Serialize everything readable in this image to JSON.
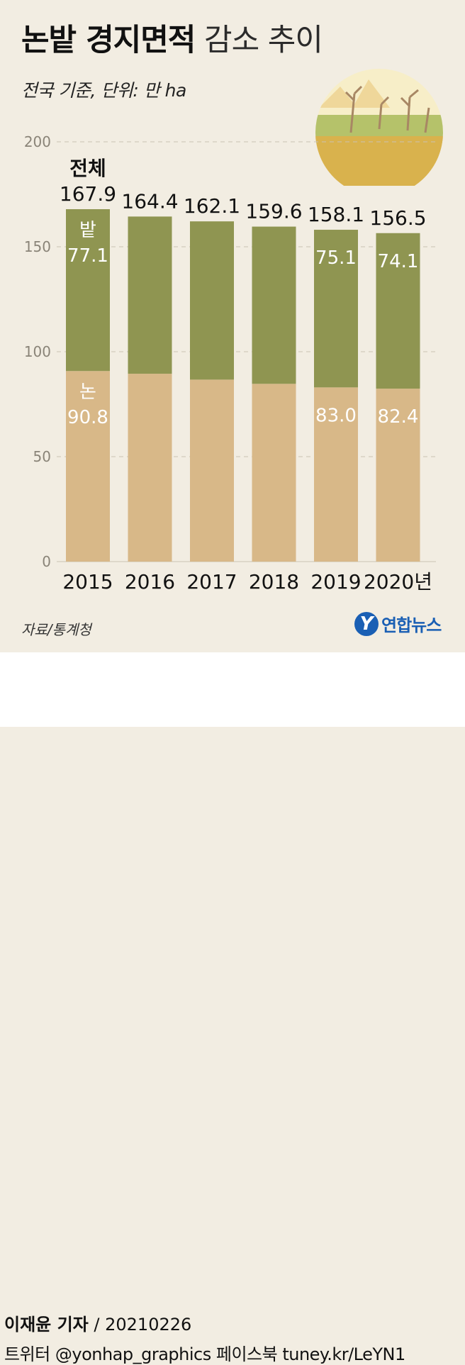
{
  "header": {
    "title_bold": "논밭 경지면적",
    "title_light": "감소 추이",
    "subtitle": "전국 기준, 단위: 만 ha"
  },
  "chart_data": {
    "type": "bar",
    "stacked": true,
    "categories": [
      "2015",
      "2016",
      "2017",
      "2018",
      "2019",
      "2020년"
    ],
    "series": [
      {
        "name": "논",
        "values": [
          90.8,
          89.5,
          86.7,
          84.7,
          83.0,
          82.4
        ],
        "color": "#d8b888"
      },
      {
        "name": "밭",
        "values": [
          77.1,
          74.9,
          75.4,
          74.9,
          75.1,
          74.1
        ],
        "color": "#8f9551"
      }
    ],
    "totals": [
      167.9,
      164.4,
      162.1,
      159.6,
      158.1,
      156.5
    ],
    "total_label": "전체",
    "total_labels": [
      "167.9",
      "164.4",
      "162.1",
      "159.6",
      "158.1",
      "156.5"
    ],
    "segment_labels": [
      {
        "bar": 0,
        "series": "밭",
        "name": "밭",
        "value": "77.1"
      },
      {
        "bar": 4,
        "series": "밭",
        "value": "75.1"
      },
      {
        "bar": 5,
        "series": "밭",
        "value": "74.1"
      },
      {
        "bar": 0,
        "series": "논",
        "name": "논",
        "value": "90.8"
      },
      {
        "bar": 4,
        "series": "논",
        "value": "83.0"
      },
      {
        "bar": 5,
        "series": "논",
        "value": "82.4"
      }
    ],
    "yticks": [
      "0",
      "50",
      "100",
      "150",
      "200"
    ],
    "ylim": [
      0,
      200
    ],
    "grid": true
  },
  "source": "자료/통계청",
  "logo": {
    "mark": "Y",
    "text": "연합뉴스"
  },
  "footer": {
    "reporter": "이재윤 기자",
    "date": " / 20210226",
    "social": "트위터 @yonhap_graphics  페이스북 tuney.kr/LeYN1"
  }
}
